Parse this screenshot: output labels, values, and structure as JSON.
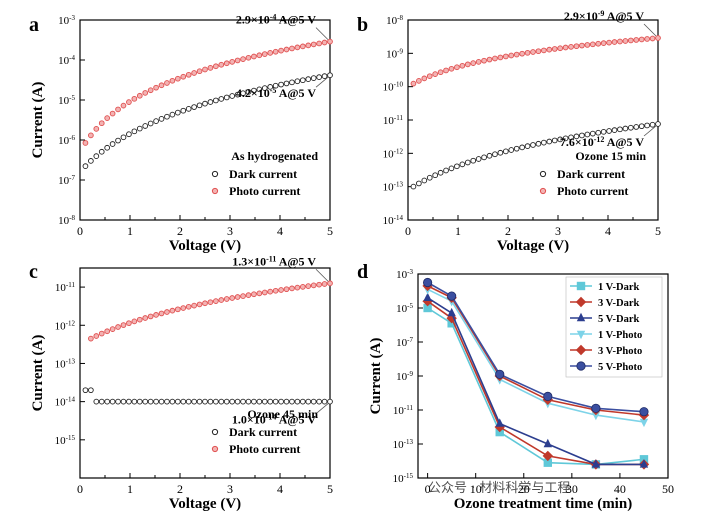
{
  "watermark": "公众号 · 材料科学与工程",
  "colors": {
    "dark_marker": "#222222",
    "photo_marker": "#e05050",
    "photo_fill": "#f3b3b3",
    "series_1v_dark": "#5fc8d8",
    "series_3v_dark": "#c0392b",
    "series_5v_dark": "#2c3e8f",
    "series_1v_photo": "#7dd3e8",
    "series_3v_photo": "#c0392b",
    "series_5v_photo": "#3b4fa0"
  },
  "chart_data": [
    {
      "panel": "a",
      "type": "scatter",
      "xlabel": "Voltage (V)",
      "ylabel": "Current (A)",
      "xlim": [
        0,
        5
      ],
      "ylim_exp": [
        -8,
        -3
      ],
      "x_ticks": [
        "0",
        "1",
        "2",
        "3",
        "4",
        "5"
      ],
      "y_ticks": [
        {
          "exp": "-8",
          "val": -8
        },
        {
          "exp": "-7",
          "val": -7
        },
        {
          "exp": "-6",
          "val": -6
        },
        {
          "exp": "-5",
          "val": -5
        },
        {
          "exp": "-4",
          "val": -4
        },
        {
          "exp": "-3",
          "val": -3
        }
      ],
      "annotations": [
        {
          "mantissa": "2.9×10",
          "exp": "-4",
          "suffix": " A@5 V",
          "x": 5,
          "y": -3.54
        },
        {
          "mantissa": "4.2×10",
          "exp": "-5",
          "suffix": " A@5 V",
          "x": 5,
          "y": -4.38
        }
      ],
      "legend_title": "As hydrogenated",
      "series": [
        {
          "name": "Dark current",
          "curve": {
            "y0": -6.8,
            "y1": -4.38,
            "k": 1.1,
            "x_min": 0.05
          }
        },
        {
          "name": "Photo current",
          "curve": {
            "y0": -6.3,
            "y1": -3.54,
            "k": 2.0,
            "x_min": 0.05
          }
        }
      ]
    },
    {
      "panel": "b",
      "type": "scatter",
      "xlabel": "Voltage (V)",
      "ylabel": "",
      "xlim": [
        0,
        5
      ],
      "ylim_exp": [
        -14,
        -8
      ],
      "x_ticks": [
        "0",
        "1",
        "2",
        "3",
        "4",
        "5"
      ],
      "y_ticks": [
        {
          "exp": "-14",
          "val": -14
        },
        {
          "exp": "-13",
          "val": -13
        },
        {
          "exp": "-12",
          "val": -12
        },
        {
          "exp": "-11",
          "val": -11
        },
        {
          "exp": "-10",
          "val": -10
        },
        {
          "exp": "-9",
          "val": -9
        },
        {
          "exp": "-8",
          "val": -8
        }
      ],
      "annotations": [
        {
          "mantissa": "2.9×10",
          "exp": "-9",
          "suffix": " A@5 V",
          "x": 5,
          "y": -8.54
        },
        {
          "mantissa": "7.6×10",
          "exp": "-12",
          "suffix": " A@5 V",
          "x": 5,
          "y": -11.12
        }
      ],
      "legend_title": "Ozone 15 min",
      "series": [
        {
          "name": "Dark current",
          "curve": {
            "y0": -13.1,
            "y1": -11.12,
            "k": 0.8,
            "x_min": 0.05
          }
        },
        {
          "name": "Photo current",
          "curve": {
            "y0": -10.0,
            "y1": -8.54,
            "k": 1.2,
            "x_min": 0.05
          }
        }
      ]
    },
    {
      "panel": "c",
      "type": "scatter",
      "xlabel": "Voltage (V)",
      "ylabel": "Current (A)",
      "xlim": [
        0,
        5
      ],
      "ylim_exp": [
        -16,
        -10.5
      ],
      "x_ticks": [
        "0",
        "1",
        "2",
        "3",
        "4",
        "5"
      ],
      "y_ticks": [
        {
          "exp": "-15",
          "val": -15
        },
        {
          "exp": "-14",
          "val": -14
        },
        {
          "exp": "-13",
          "val": -13
        },
        {
          "exp": "-12",
          "val": -12
        },
        {
          "exp": "-11",
          "val": -11
        }
      ],
      "annotations": [
        {
          "mantissa": "1.3×10",
          "exp": "-11",
          "suffix": " A@5 V",
          "x": 5,
          "y": -10.9
        },
        {
          "mantissa": "1.0×10",
          "exp": "-14",
          "suffix": " A@5 V",
          "x": 5,
          "y": -14.0
        }
      ],
      "legend_title": "Ozone 45 min",
      "series": [
        {
          "name": "Dark current",
          "flat": {
            "y": -14.0,
            "y_start": -13.7,
            "x_min": 0.1
          }
        },
        {
          "name": "Photo current",
          "curve": {
            "y0": -12.5,
            "y1": -10.9,
            "k": 0.7,
            "x_min": 0.2
          }
        }
      ]
    },
    {
      "panel": "d",
      "type": "line",
      "xlabel": "Ozone treatment time (min)",
      "ylabel": "Current (A)",
      "xlim": [
        -2,
        50
      ],
      "ylim_exp": [
        -15,
        -3
      ],
      "x_ticks": [
        "0",
        "10",
        "20",
        "30",
        "40",
        "50"
      ],
      "x_tick_vals": [
        0,
        10,
        20,
        30,
        40,
        50
      ],
      "y_ticks": [
        {
          "exp": "-15",
          "val": -15
        },
        {
          "exp": "-13",
          "val": -13
        },
        {
          "exp": "-11",
          "val": -11
        },
        {
          "exp": "-9",
          "val": -9
        },
        {
          "exp": "-7",
          "val": -7
        },
        {
          "exp": "-5",
          "val": -5
        },
        {
          "exp": "-3",
          "val": -3
        }
      ],
      "x": [
        0,
        5,
        15,
        25,
        35,
        45
      ],
      "series": [
        {
          "name": "1 V-Dark",
          "marker": "square",
          "color": "#5fc8d8",
          "log10_values": [
            -5.0,
            -5.9,
            -12.3,
            -14.1,
            -14.2,
            -13.9
          ]
        },
        {
          "name": "3 V-Dark",
          "marker": "diamond",
          "color": "#c0392b",
          "log10_values": [
            -4.6,
            -5.6,
            -12.0,
            -13.7,
            -14.2,
            -14.2
          ]
        },
        {
          "name": "5 V-Dark",
          "marker": "triangle",
          "color": "#2c3e8f",
          "log10_values": [
            -4.4,
            -5.3,
            -11.8,
            -13.0,
            -14.2,
            -14.2
          ]
        },
        {
          "name": "1 V-Photo",
          "marker": "triangle-down",
          "color": "#7dd3e8",
          "log10_values": [
            -3.9,
            -4.6,
            -9.2,
            -10.6,
            -11.3,
            -11.7
          ]
        },
        {
          "name": "3 V-Photo",
          "marker": "diamond",
          "color": "#c0392b",
          "log10_values": [
            -3.7,
            -4.4,
            -9.0,
            -10.4,
            -11.0,
            -11.3
          ]
        },
        {
          "name": "5 V-Photo",
          "marker": "circle",
          "color": "#3b4fa0",
          "log10_values": [
            -3.5,
            -4.3,
            -8.9,
            -10.2,
            -10.9,
            -11.1
          ]
        }
      ]
    }
  ]
}
